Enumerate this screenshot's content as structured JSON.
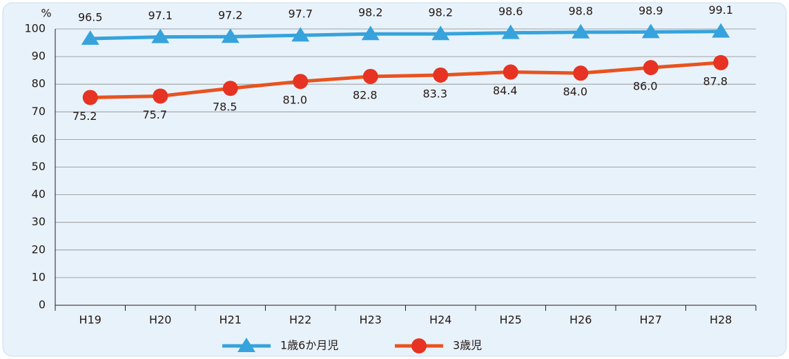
{
  "chart_data": {
    "type": "line",
    "ylabel": "%",
    "categories": [
      "H19",
      "H20",
      "H21",
      "H22",
      "H23",
      "H24",
      "H25",
      "H26",
      "H27",
      "H28"
    ],
    "series": [
      {
        "name": "1歳6か月児",
        "color": "#36a3dc",
        "marker": "triangle",
        "values": [
          96.5,
          97.1,
          97.2,
          97.7,
          98.2,
          98.2,
          98.6,
          98.8,
          98.9,
          99.1
        ]
      },
      {
        "name": "3歳児",
        "color": "#e8531f",
        "marker_color": "#e63323",
        "marker": "circle",
        "values": [
          75.2,
          75.7,
          78.5,
          81.0,
          82.8,
          83.3,
          84.4,
          84.0,
          86.0,
          87.8
        ],
        "value_labels": [
          "75.2",
          "75.7",
          "78.5",
          "81.0",
          "82.8",
          "83.3",
          "84.4",
          "84.0",
          "86.0",
          "87.8"
        ]
      }
    ],
    "ylim": [
      0,
      100
    ],
    "yticks": [
      0,
      10,
      20,
      30,
      40,
      50,
      60,
      70,
      80,
      90,
      100
    ],
    "grid": true
  }
}
